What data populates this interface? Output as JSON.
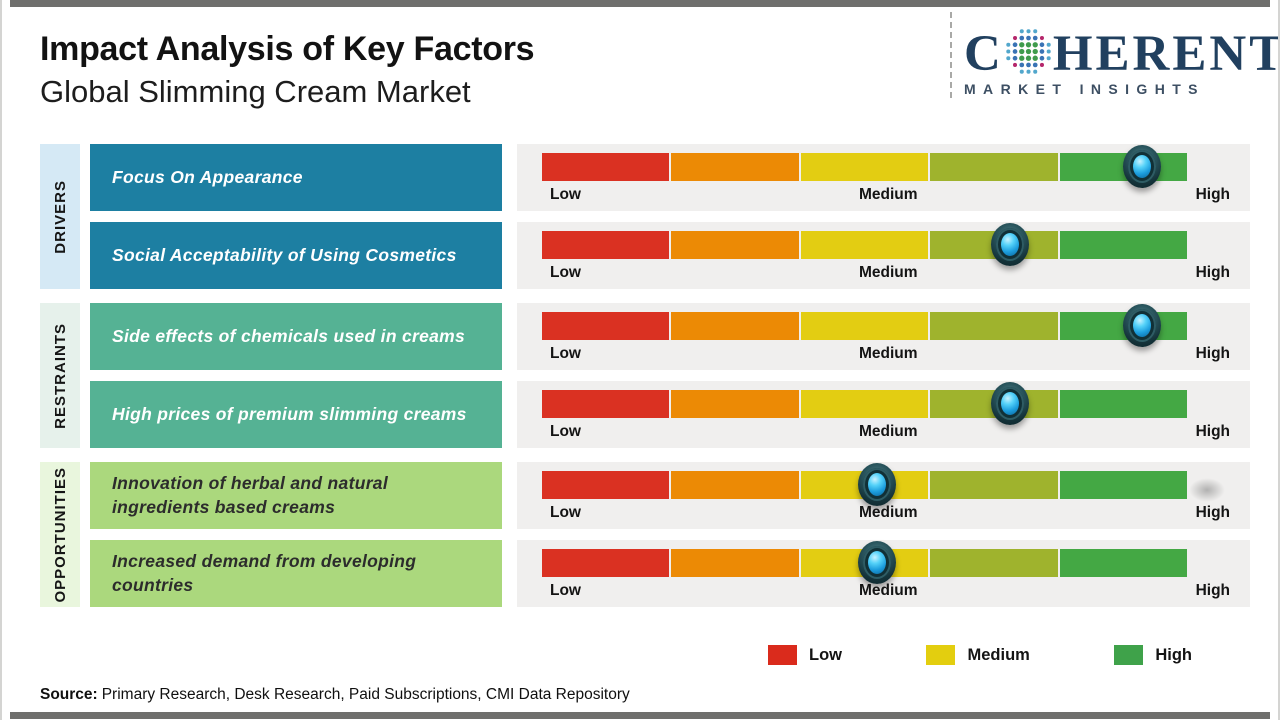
{
  "page": {
    "title": "Impact Analysis of Key Factors",
    "subtitle": "Global Slimming Cream Market",
    "source_label": "Source:",
    "source_text": "Primary Research, Desk Research, Paid Subscriptions, CMI Data Repository"
  },
  "logo": {
    "brand_start": "C",
    "brand_end": "HERENT",
    "tagline": "MARKET INSIGHTS",
    "globe_icon": "dotted-globe",
    "navy": "#21405f"
  },
  "gauge": {
    "segment_colors": [
      "#da3122",
      "#ec8a05",
      "#e3cd12",
      "#9fb32d",
      "#44a844"
    ],
    "scale_labels": [
      "Low",
      "Medium",
      "High"
    ],
    "panel_bg": "#f0efee",
    "marker_accent": "#29b7ef"
  },
  "legend": {
    "items": [
      {
        "label": "Low",
        "color": "#da2b1c"
      },
      {
        "label": "Medium",
        "color": "#e3ce0f"
      },
      {
        "label": "High",
        "color": "#3fa24a"
      }
    ]
  },
  "chart_data": {
    "type": "gauge",
    "title": "Impact Analysis of Key Factors",
    "subtitle": "Global Slimming Cream Market",
    "scale": [
      "Low",
      "Medium",
      "High"
    ],
    "scale_segments": 5,
    "groups": [
      {
        "category": "DRIVERS",
        "strip_color": "#d5e9f5",
        "box_color": "#1d7fa2",
        "box_text_color": "#ffffff",
        "factors": [
          {
            "name": "Focus On Appearance",
            "impact_level": "High",
            "position": 0.93
          },
          {
            "name": "Social Acceptability of Using Cosmetics",
            "impact_level": "Medium-High",
            "position": 0.725
          }
        ]
      },
      {
        "category": "RESTRAINTS",
        "strip_color": "#e6f1eb",
        "box_color": "#55b294",
        "box_text_color": "#ffffff",
        "factors": [
          {
            "name": "Side effects of chemicals used in creams",
            "impact_level": "High",
            "position": 0.93
          },
          {
            "name": "High prices of premium slimming creams",
            "impact_level": "Medium-High",
            "position": 0.725
          }
        ]
      },
      {
        "category": "OPPORTUNITIES",
        "strip_color": "#e9f6dd",
        "box_color": "#abd87d",
        "box_text_color": "#2c2c2c",
        "factors": [
          {
            "name": "Innovation of herbal and natural ingredients based creams",
            "impact_level": "Medium",
            "position": 0.52,
            "end_shadow": true
          },
          {
            "name": "Increased demand from developing countries",
            "impact_level": "Medium",
            "position": 0.52
          }
        ]
      }
    ]
  }
}
